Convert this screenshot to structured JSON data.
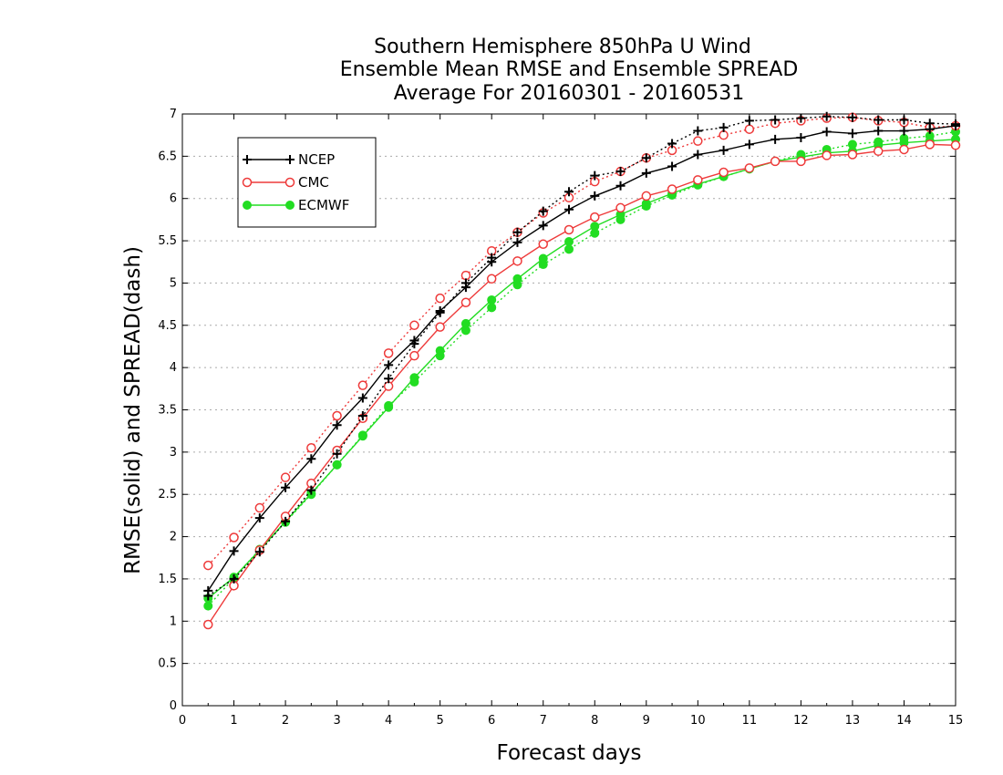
{
  "chart_data": {
    "type": "line",
    "title": [
      "Southern Hemisphere 850hPa U Wind",
      "Ensemble Mean RMSE and Ensemble SPREAD",
      "Average For 20160301 - 20160531"
    ],
    "xlabel": "Forecast days",
    "ylabel": "RMSE(solid) and SPREAD(dash)",
    "xlim": [
      0,
      15
    ],
    "ylim": [
      0,
      7
    ],
    "xticks": [
      0,
      1,
      2,
      3,
      4,
      5,
      6,
      7,
      8,
      9,
      10,
      11,
      12,
      13,
      14,
      15
    ],
    "yticks": [
      0,
      0.5,
      1,
      1.5,
      2,
      2.5,
      3,
      3.5,
      4,
      4.5,
      5,
      5.5,
      6,
      6.5,
      7
    ],
    "grid": "horizontal dotted",
    "legend": "top-left",
    "x": [
      0.5,
      1,
      1.5,
      2,
      2.5,
      3,
      3.5,
      4,
      4.5,
      5,
      5.5,
      6,
      6.5,
      7,
      7.5,
      8,
      8.5,
      9,
      9.5,
      10,
      10.5,
      11,
      11.5,
      12,
      12.5,
      13,
      13.5,
      14,
      14.5,
      15
    ],
    "series": [
      {
        "name": "NCEP",
        "color": "#000000",
        "marker": "plus",
        "rmse": [
          1.36,
          1.83,
          2.22,
          2.58,
          2.92,
          3.32,
          3.64,
          4.03,
          4.32,
          4.67,
          4.95,
          5.25,
          5.48,
          5.68,
          5.87,
          6.03,
          6.15,
          6.3,
          6.38,
          6.52,
          6.57,
          6.64,
          6.7,
          6.72,
          6.79,
          6.77,
          6.8,
          6.8,
          6.82,
          6.86
        ],
        "spread": [
          1.3,
          1.5,
          1.82,
          2.18,
          2.55,
          2.98,
          3.43,
          3.87,
          4.28,
          4.65,
          5.0,
          5.3,
          5.6,
          5.85,
          6.08,
          6.27,
          6.32,
          6.48,
          6.65,
          6.8,
          6.84,
          6.92,
          6.93,
          6.95,
          6.97,
          6.96,
          6.93,
          6.93,
          6.89,
          6.88
        ]
      },
      {
        "name": "CMC",
        "color": "#ee3a3a",
        "marker": "circle",
        "rmse": [
          0.96,
          1.42,
          1.84,
          2.24,
          2.63,
          3.02,
          3.4,
          3.78,
          4.14,
          4.48,
          4.77,
          5.05,
          5.26,
          5.46,
          5.63,
          5.78,
          5.89,
          6.03,
          6.11,
          6.22,
          6.31,
          6.36,
          6.44,
          6.44,
          6.51,
          6.52,
          6.56,
          6.58,
          6.64,
          6.63
        ],
        "spread": [
          1.66,
          1.99,
          2.34,
          2.7,
          3.05,
          3.43,
          3.79,
          4.17,
          4.5,
          4.82,
          5.09,
          5.38,
          5.6,
          5.83,
          6.01,
          6.2,
          6.32,
          6.48,
          6.57,
          6.68,
          6.75,
          6.82,
          6.89,
          6.92,
          6.95,
          6.96,
          6.92,
          6.9,
          6.84,
          6.86
        ]
      },
      {
        "name": "ECMWF",
        "color": "#22dd22",
        "marker": "dot",
        "rmse": [
          1.27,
          1.52,
          1.84,
          2.18,
          2.51,
          2.85,
          3.19,
          3.53,
          3.88,
          4.2,
          4.52,
          4.8,
          5.05,
          5.29,
          5.49,
          5.67,
          5.81,
          5.94,
          6.06,
          6.17,
          6.26,
          6.35,
          6.44,
          6.49,
          6.54,
          6.56,
          6.63,
          6.66,
          6.68,
          6.7
        ],
        "spread": [
          1.18,
          1.51,
          1.85,
          2.17,
          2.5,
          2.85,
          3.2,
          3.55,
          3.83,
          4.14,
          4.44,
          4.71,
          4.98,
          5.22,
          5.4,
          5.59,
          5.75,
          5.91,
          6.04,
          6.16,
          6.26,
          6.35,
          6.44,
          6.52,
          6.58,
          6.64,
          6.67,
          6.71,
          6.74,
          6.79
        ]
      }
    ]
  }
}
